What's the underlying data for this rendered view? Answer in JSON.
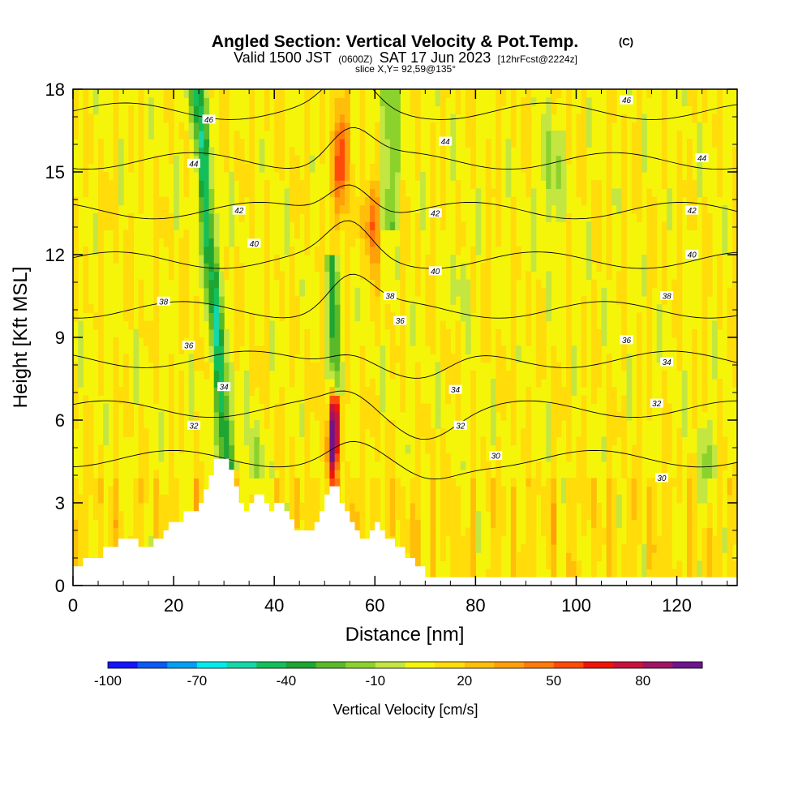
{
  "chart_data": {
    "type": "heatmap",
    "title": "Angled Section: Vertical Velocity & Pot.Temp.",
    "title_unit": "(C)",
    "subtitle_parts": [
      "Valid 1500 JST",
      "(0600Z)",
      "SAT 17 Jun 2023",
      "[12hrFcst@2224z]"
    ],
    "slice_label": "slice X,Y= 92,59@135°",
    "xlabel": "Distance [nm]",
    "ylabel": "Height [Kft MSL]",
    "xlim": [
      0,
      132
    ],
    "ylim": [
      0,
      18
    ],
    "x_ticks": [
      "0",
      "20",
      "40",
      "60",
      "80",
      "100",
      "120"
    ],
    "y_ticks": [
      "0",
      "3",
      "6",
      "9",
      "12",
      "15",
      "18"
    ],
    "grid": false,
    "colorbar": {
      "label": "Vertical Velocity [cm/s]",
      "tick_labels": [
        "-100",
        "-70",
        "-40",
        "-10",
        "20",
        "50",
        "80"
      ],
      "bins": [
        -100,
        -90,
        -80,
        -70,
        -60,
        -50,
        -40,
        -30,
        -20,
        -10,
        0,
        10,
        20,
        30,
        40,
        50,
        60,
        70,
        80,
        90
      ],
      "colors": [
        "#1414ff",
        "#0a5af5",
        "#00a0f5",
        "#00ebeb",
        "#14d7aa",
        "#14bf5a",
        "#1ea532",
        "#5ab928",
        "#8cd22d",
        "#c3e641",
        "#f5f50a",
        "#ffdc0a",
        "#ffbe0a",
        "#ffa00a",
        "#ff7a0a",
        "#ff4b0a",
        "#f01408",
        "#c8143c",
        "#a01464",
        "#6e148c"
      ]
    },
    "theta_contours": [
      {
        "value": 46,
        "labels": [
          {
            "x": 27,
            "y": 16.9
          },
          {
            "x": 110,
            "y": 17.6
          }
        ]
      },
      {
        "value": 44,
        "labels": [
          {
            "x": 24,
            "y": 15.3
          },
          {
            "x": 74,
            "y": 16.1
          },
          {
            "x": 125,
            "y": 15.5
          }
        ]
      },
      {
        "value": 42,
        "labels": [
          {
            "x": 33,
            "y": 13.6
          },
          {
            "x": 72,
            "y": 13.5
          },
          {
            "x": 123,
            "y": 13.6
          }
        ]
      },
      {
        "value": 40,
        "labels": [
          {
            "x": 36,
            "y": 12.4
          },
          {
            "x": 72,
            "y": 11.4
          },
          {
            "x": 123,
            "y": 12.0
          }
        ]
      },
      {
        "value": 38,
        "labels": [
          {
            "x": 18,
            "y": 10.3
          },
          {
            "x": 63,
            "y": 10.5
          },
          {
            "x": 118,
            "y": 10.5
          }
        ]
      },
      {
        "value": 36,
        "labels": [
          {
            "x": 23,
            "y": 8.7
          },
          {
            "x": 65,
            "y": 9.6
          },
          {
            "x": 110,
            "y": 8.9
          }
        ]
      },
      {
        "value": 34,
        "labels": [
          {
            "x": 30,
            "y": 7.2
          },
          {
            "x": 76,
            "y": 7.1
          },
          {
            "x": 118,
            "y": 8.1
          }
        ]
      },
      {
        "value": 32,
        "labels": [
          {
            "x": 24,
            "y": 5.8
          },
          {
            "x": 77,
            "y": 5.8
          },
          {
            "x": 116,
            "y": 6.6
          }
        ]
      },
      {
        "value": 30,
        "labels": [
          {
            "x": 84,
            "y": 4.7
          },
          {
            "x": 117,
            "y": 3.9
          }
        ]
      }
    ],
    "terrain_profile_kft": [
      [
        0,
        0.7
      ],
      [
        2,
        1.0
      ],
      [
        6,
        1.4
      ],
      [
        9,
        1.7
      ],
      [
        12,
        1.7
      ],
      [
        13,
        1.4
      ],
      [
        15,
        1.4
      ],
      [
        16,
        1.7
      ],
      [
        18,
        2.0
      ],
      [
        19,
        2.3
      ],
      [
        22,
        2.7
      ],
      [
        24,
        2.7
      ],
      [
        25,
        3.0
      ],
      [
        26,
        3.5
      ],
      [
        27,
        4.0
      ],
      [
        28,
        4.6
      ],
      [
        30,
        4.6
      ],
      [
        31,
        4.2
      ],
      [
        32,
        3.6
      ],
      [
        33,
        3.0
      ],
      [
        34,
        2.7
      ],
      [
        35,
        3.0
      ],
      [
        36,
        3.3
      ],
      [
        37,
        3.3
      ],
      [
        38,
        3.0
      ],
      [
        39,
        2.7
      ],
      [
        40,
        3.0
      ],
      [
        41,
        3.0
      ],
      [
        42,
        2.7
      ],
      [
        43,
        2.4
      ],
      [
        44,
        2.0
      ],
      [
        46,
        2.0
      ],
      [
        47,
        2.0
      ],
      [
        48,
        2.3
      ],
      [
        49,
        2.7
      ],
      [
        50,
        3.3
      ],
      [
        51,
        3.6
      ],
      [
        52,
        3.6
      ],
      [
        53,
        3.0
      ],
      [
        54,
        2.7
      ],
      [
        55,
        2.3
      ],
      [
        56,
        2.0
      ],
      [
        57,
        1.7
      ],
      [
        58,
        1.7
      ],
      [
        59,
        2.0
      ],
      [
        60,
        2.3
      ],
      [
        61,
        2.0
      ],
      [
        62,
        1.7
      ],
      [
        64,
        1.4
      ],
      [
        66,
        1.0
      ],
      [
        68,
        0.7
      ],
      [
        70,
        0.3
      ],
      [
        132,
        0.3
      ]
    ]
  }
}
